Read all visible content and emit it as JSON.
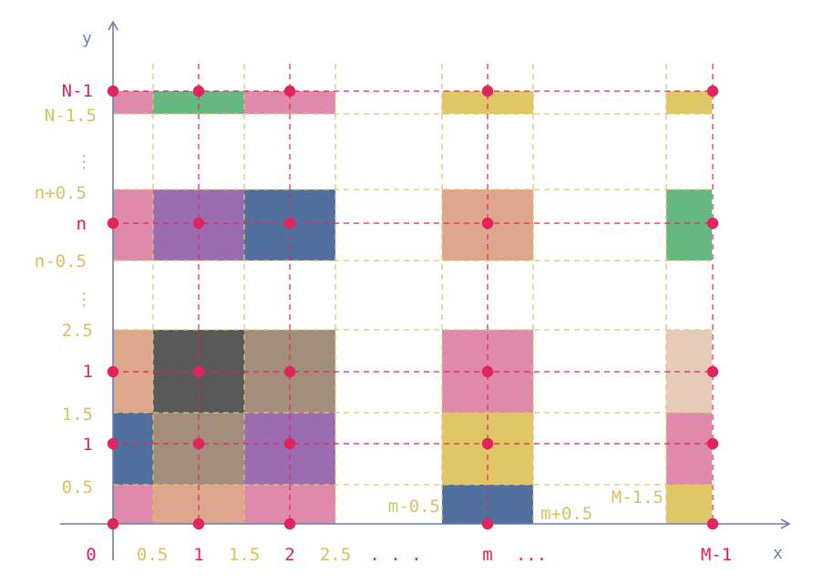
{
  "colors": {
    "axis": "#6b7fb0",
    "dot": "#e0245e",
    "dash_red": "#e0245e",
    "dash_gold": "#e0c66b",
    "label_red": "#e0245e",
    "label_gold": "#d9c064"
  },
  "axes": {
    "x_name": "x",
    "y_name": "y"
  },
  "x_labels_red": [
    {
      "key": "0",
      "text": "0"
    },
    {
      "key": "1",
      "text": "1"
    },
    {
      "key": "2",
      "text": "2"
    },
    {
      "key": "m",
      "text": "m"
    },
    {
      "key": "M-1",
      "text": "M-1"
    }
  ],
  "x_labels_gold": [
    {
      "key": "0.5",
      "text": "0.5"
    },
    {
      "key": "1.5",
      "text": "1.5"
    },
    {
      "key": "2.5",
      "text": "2.5"
    }
  ],
  "x_ellipsis": [
    {
      "key": "after-2.5",
      "text": ". . ."
    },
    {
      "key": "after-m",
      "text": "..."
    }
  ],
  "y_labels_red": [
    {
      "key": "N-1",
      "text": "N-1"
    },
    {
      "key": "n",
      "text": "n"
    },
    {
      "key": "1-upper",
      "text": "1"
    },
    {
      "key": "1-lower",
      "text": "1"
    }
  ],
  "y_labels_gold": [
    {
      "key": "N-1.5",
      "text": "N-1.5"
    },
    {
      "key": "n+0.5",
      "text": "n+0.5"
    },
    {
      "key": "n-0.5",
      "text": "n-0.5"
    },
    {
      "key": "2.5",
      "text": "2.5"
    },
    {
      "key": "1.5",
      "text": "1.5"
    },
    {
      "key": "0.5",
      "text": "0.5"
    }
  ],
  "inner_labels": [
    {
      "key": "m-0.5",
      "text": "m-0.5"
    },
    {
      "key": "m+0.5",
      "text": "m+0.5"
    },
    {
      "key": "M-1.5",
      "text": "M-1.5"
    }
  ],
  "cell_colors": {
    "pink": "#e08aab",
    "green": "#66b883",
    "gold": "#dfc766",
    "purple": "#9b6cb0",
    "navy": "#52709e",
    "salmon": "#dea68d",
    "charcoal": "#595959",
    "taupe": "#a38d7c",
    "beige": "#e7cbb9"
  },
  "cells": [
    {
      "col": 0,
      "row": "N-1",
      "color": "pink"
    },
    {
      "col": 1,
      "row": "N-1",
      "color": "green"
    },
    {
      "col": 2,
      "row": "N-1",
      "color": "pink"
    },
    {
      "col": "m",
      "row": "N-1",
      "color": "gold"
    },
    {
      "col": "M-1",
      "row": "N-1",
      "color": "gold"
    },
    {
      "col": 0,
      "row": "n",
      "color": "pink"
    },
    {
      "col": 1,
      "row": "n",
      "color": "purple"
    },
    {
      "col": 2,
      "row": "n",
      "color": "navy"
    },
    {
      "col": "m",
      "row": "n",
      "color": "salmon"
    },
    {
      "col": "M-1",
      "row": "n",
      "color": "green"
    },
    {
      "col": 0,
      "row": "r2",
      "color": "salmon"
    },
    {
      "col": 1,
      "row": "r2",
      "color": "charcoal"
    },
    {
      "col": 2,
      "row": "r2",
      "color": "taupe"
    },
    {
      "col": "m",
      "row": "r2",
      "color": "pink"
    },
    {
      "col": "M-1",
      "row": "r2",
      "color": "beige"
    },
    {
      "col": 0,
      "row": "r1",
      "color": "navy"
    },
    {
      "col": 1,
      "row": "r1",
      "color": "taupe"
    },
    {
      "col": 2,
      "row": "r1",
      "color": "purple"
    },
    {
      "col": "m",
      "row": "r1",
      "color": "gold"
    },
    {
      "col": "M-1",
      "row": "r1",
      "color": "pink"
    },
    {
      "col": 0,
      "row": "r0",
      "color": "pink"
    },
    {
      "col": 1,
      "row": "r0",
      "color": "salmon"
    },
    {
      "col": 2,
      "row": "r0",
      "color": "pink"
    },
    {
      "col": "m",
      "row": "r0",
      "color": "navy"
    },
    {
      "col": "M-1",
      "row": "r0",
      "color": "gold"
    }
  ],
  "points": [
    {
      "col": 0,
      "row": "N-1"
    },
    {
      "col": 1,
      "row": "N-1"
    },
    {
      "col": 2,
      "row": "N-1"
    },
    {
      "col": "m",
      "row": "N-1"
    },
    {
      "col": "M-1",
      "row": "N-1"
    },
    {
      "col": 0,
      "row": "n"
    },
    {
      "col": 1,
      "row": "n"
    },
    {
      "col": 2,
      "row": "n"
    },
    {
      "col": "m",
      "row": "n"
    },
    {
      "col": "M-1",
      "row": "n"
    },
    {
      "col": 0,
      "row": "r2"
    },
    {
      "col": 1,
      "row": "r2"
    },
    {
      "col": 2,
      "row": "r2"
    },
    {
      "col": "m",
      "row": "r2"
    },
    {
      "col": "M-1",
      "row": "r2"
    },
    {
      "col": 0,
      "row": "r1"
    },
    {
      "col": 1,
      "row": "r1"
    },
    {
      "col": 2,
      "row": "r1"
    },
    {
      "col": "m",
      "row": "r1"
    },
    {
      "col": "M-1",
      "row": "r1"
    },
    {
      "col": 0,
      "row": "r0"
    },
    {
      "col": 1,
      "row": "r0"
    },
    {
      "col": 2,
      "row": "r0"
    },
    {
      "col": "m",
      "row": "r0"
    },
    {
      "col": "M-1",
      "row": "r0"
    }
  ]
}
